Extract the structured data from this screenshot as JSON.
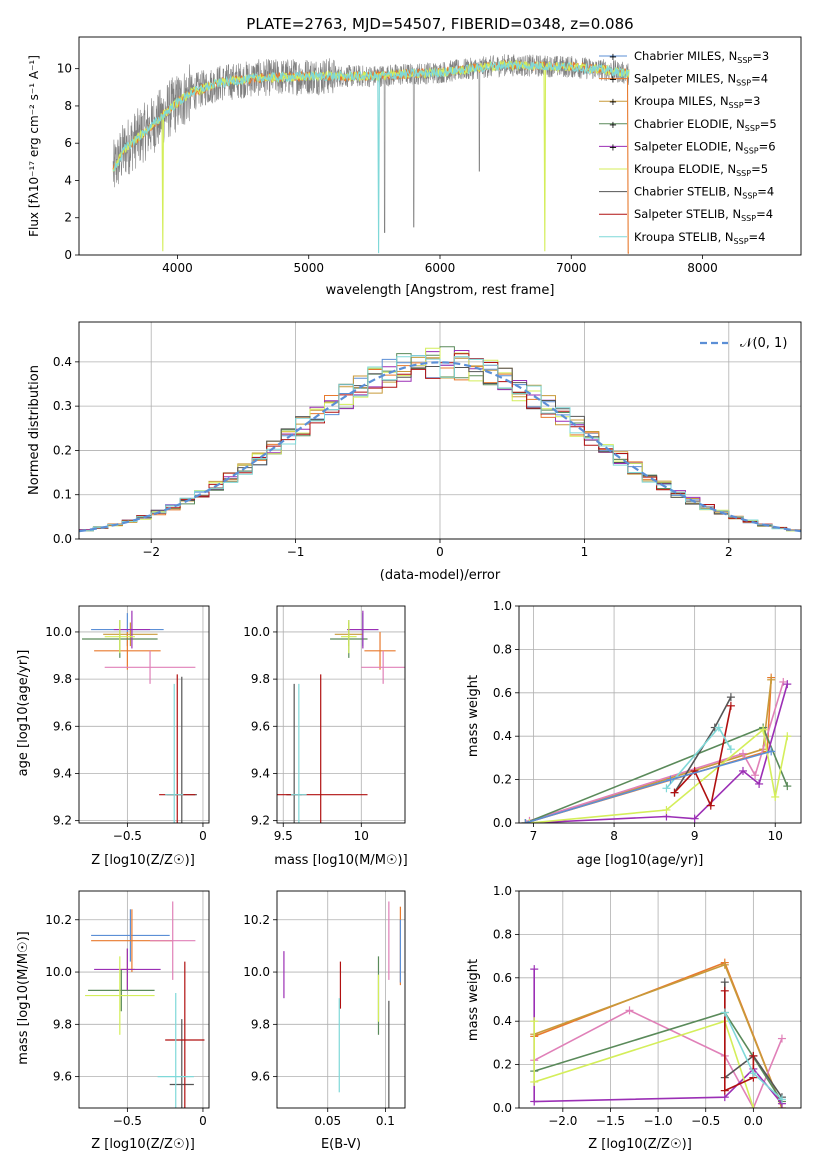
{
  "figure_title": "PLATE=2763, MJD=54507, FIBERID=0348, z=0.086",
  "colors": {
    "grid": "#b0b0b0",
    "observed": "#808080",
    "gaussian": "#5b8fd6",
    "models": [
      "#5b8fd6",
      "#e87a2e",
      "#c89a3a",
      "#5a8a5a",
      "#9b2fb5",
      "#d4ee5a",
      "#555555",
      "#b01010",
      "#7fd8d8"
    ]
  },
  "chart_data": [
    {
      "id": "spectrum",
      "type": "line",
      "title": "PLATE=2763, MJD=54507, FIBERID=0348, z=0.086",
      "xlabel": "wavelength [Angstrom, rest frame]",
      "ylabel": "Flux [fλ10⁻¹⁷ erg cm⁻² s⁻¹ A⁻¹]",
      "xlim": [
        3250,
        8750
      ],
      "ylim": [
        0,
        11.7
      ],
      "xticks": [
        4000,
        5000,
        6000,
        7000,
        8000
      ],
      "yticks": [
        0,
        2,
        4,
        6,
        8,
        10
      ],
      "continuum": {
        "x": [
          3500,
          3600,
          3800,
          3950,
          4100,
          4300,
          4600,
          5000,
          5500,
          6000,
          6500,
          7000,
          7300,
          7450
        ],
        "y": [
          4.4,
          5.7,
          6.9,
          7.9,
          8.7,
          9.2,
          9.5,
          9.6,
          9.6,
          9.8,
          10.2,
          10.1,
          9.9,
          9.7
        ]
      },
      "legend_location": "upper right",
      "legend": [
        "Chabrier MILES, N_SSP=3",
        "Salpeter MILES, N_SSP=4",
        "Kroupa MILES, N_SSP=3",
        "Chabrier ELODIE, N_SSP=5",
        "Salpeter ELODIE, N_SSP=6",
        "Kroupa ELODIE, N_SSP=5",
        "Chabrier STELIB, N_SSP=4",
        "Salpeter STELIB, N_SSP=4",
        "Kroupa STELIB, N_SSP=4"
      ]
    },
    {
      "id": "residuals",
      "type": "histogram",
      "xlabel": "(data-model)/error",
      "ylabel": "Normed distribution",
      "xlim": [
        -2.5,
        2.5
      ],
      "ylim": [
        0,
        0.49
      ],
      "xticks": [
        -2,
        -1,
        0,
        1,
        2
      ],
      "yticks": [
        0.0,
        0.1,
        0.2,
        0.3,
        0.4
      ],
      "gaussian_label": "𝒩(0, 1)",
      "bin_width": 0.1,
      "legend_location": "upper right"
    },
    {
      "id": "age-vs-Z",
      "type": "scatter",
      "xlabel": "Z [log10(Z/Z☉)]",
      "ylabel": "age  [log10(age/yr)]",
      "xlim": [
        -0.82,
        0.04
      ],
      "ylim": [
        9.19,
        10.11
      ],
      "xticks": [
        -0.5,
        0.0
      ],
      "yticks": [
        9.2,
        9.4,
        9.6,
        9.8,
        10.0
      ],
      "points": [
        {
          "x": -0.5,
          "y": 10.01,
          "xerr": 0.24,
          "yerr": 0.07,
          "c": 0
        },
        {
          "x": -0.5,
          "y": 9.92,
          "xerr": 0.22,
          "yerr": 0.08,
          "c": 1
        },
        {
          "x": -0.48,
          "y": 9.99,
          "xerr": 0.18,
          "yerr": 0.05,
          "c": 2
        },
        {
          "x": -0.55,
          "y": 9.97,
          "xerr": 0.25,
          "yerr": 0.08,
          "c": 3
        },
        {
          "x": -0.47,
          "y": 10.01,
          "xerr": 0.12,
          "yerr": 0.08,
          "c": 4
        },
        {
          "x": -0.55,
          "y": 9.98,
          "xerr": 0.1,
          "yerr": 0.07,
          "c": 5
        },
        {
          "x": -0.14,
          "y": 9.31,
          "xerr": 0.1,
          "yerr": 0.5,
          "c": 6
        },
        {
          "x": -0.17,
          "y": 9.31,
          "xerr": 0.12,
          "yerr": 0.51,
          "c": 7
        },
        {
          "x": -0.19,
          "y": 9.31,
          "xerr": 0.06,
          "yerr": 0.47,
          "c": 8
        },
        {
          "x": -0.35,
          "y": 9.85,
          "xerr": 0.3,
          "yerr": 0.07,
          "c": "pink"
        }
      ]
    },
    {
      "id": "age-vs-mass",
      "type": "scatter",
      "xlabel": "mass [log10(M/M☉)]",
      "ylabel": "",
      "xlim": [
        9.46,
        10.28
      ],
      "ylim": [
        9.19,
        10.11
      ],
      "xticks": [
        9.5,
        10.0
      ],
      "yticks": [
        9.2,
        9.4,
        9.6,
        9.8,
        10.0
      ],
      "points": [
        {
          "x": 10.01,
          "y": 10.01,
          "xerr": 0.1,
          "yerr": 0.07,
          "c": 0
        },
        {
          "x": 10.12,
          "y": 9.92,
          "xerr": 0.1,
          "yerr": 0.08,
          "c": 1
        },
        {
          "x": 9.92,
          "y": 9.99,
          "xerr": 0.09,
          "yerr": 0.05,
          "c": 2
        },
        {
          "x": 9.92,
          "y": 9.97,
          "xerr": 0.12,
          "yerr": 0.08,
          "c": 3
        },
        {
          "x": 10.01,
          "y": 10.01,
          "xerr": 0.1,
          "yerr": 0.08,
          "c": 4
        },
        {
          "x": 9.92,
          "y": 9.98,
          "xerr": 0.05,
          "yerr": 0.07,
          "c": 5
        },
        {
          "x": 9.57,
          "y": 9.31,
          "xerr": 0.05,
          "yerr": 0.47,
          "c": 6
        },
        {
          "x": 9.74,
          "y": 9.31,
          "xerr": 0.3,
          "yerr": 0.51,
          "c": 7
        },
        {
          "x": 9.6,
          "y": 9.31,
          "xerr": 0.05,
          "yerr": 0.47,
          "c": 8
        },
        {
          "x": 10.14,
          "y": 9.85,
          "xerr": 0.14,
          "yerr": 0.07,
          "c": "pink"
        }
      ]
    },
    {
      "id": "mass-weight-vs-age",
      "type": "line",
      "xlabel": "age  [log10(age/yr)]",
      "ylabel": "mass weight",
      "xlim": [
        6.82,
        10.32
      ],
      "ylim": [
        0,
        1.0
      ],
      "xticks": [
        7,
        8,
        9,
        10
      ],
      "yticks": [
        0.0,
        0.2,
        0.4,
        0.6,
        0.8,
        1.0
      ],
      "series": [
        {
          "c": 1,
          "x": [
            6.9,
            9.9,
            9.95
          ],
          "y": [
            0.0,
            0.33,
            0.67
          ]
        },
        {
          "c": 2,
          "x": [
            6.9,
            9.85,
            9.95
          ],
          "y": [
            0.0,
            0.34,
            0.66
          ]
        },
        {
          "c": "pink",
          "x": [
            6.95,
            9.6,
            9.75,
            10.1
          ],
          "y": [
            0.01,
            0.32,
            0.22,
            0.65
          ]
        },
        {
          "c": 3,
          "x": [
            6.9,
            9.85,
            10.15
          ],
          "y": [
            0.0,
            0.44,
            0.17
          ]
        },
        {
          "c": 4,
          "x": [
            6.95,
            8.65,
            9.0,
            9.6,
            9.8,
            10.15
          ],
          "y": [
            0.0,
            0.03,
            0.02,
            0.24,
            0.18,
            0.64
          ]
        },
        {
          "c": 5,
          "x": [
            6.95,
            8.65,
            9.85,
            10.0,
            10.15
          ],
          "y": [
            0.0,
            0.06,
            0.43,
            0.12,
            0.4
          ]
        },
        {
          "c": 6,
          "x": [
            8.75,
            9.25,
            9.45
          ],
          "y": [
            0.14,
            0.44,
            0.58
          ]
        },
        {
          "c": 7,
          "x": [
            8.75,
            9.0,
            9.2,
            9.45
          ],
          "y": [
            0.14,
            0.24,
            0.08,
            0.54
          ]
        },
        {
          "c": 8,
          "x": [
            8.65,
            9.3,
            9.45
          ],
          "y": [
            0.16,
            0.44,
            0.34
          ]
        },
        {
          "c": 0,
          "x": [
            6.9,
            8.7,
            9.95
          ],
          "y": [
            0.0,
            0.2,
            0.33
          ]
        }
      ]
    },
    {
      "id": "mass-vs-Z",
      "type": "scatter",
      "xlabel": "Z [log10(Z/Z☉)]",
      "ylabel": "mass [log10(M/M☉)]",
      "xlim": [
        -0.82,
        0.04
      ],
      "ylim": [
        9.48,
        10.31
      ],
      "xticks": [
        -0.5,
        0.0
      ],
      "yticks": [
        9.6,
        9.8,
        10.0,
        10.2
      ],
      "points": [
        {
          "x": -0.48,
          "y": 10.14,
          "xerr": 0.26,
          "yerr": 0.1,
          "c": 0
        },
        {
          "x": -0.47,
          "y": 10.12,
          "xerr": 0.27,
          "yerr": 0.12,
          "c": 1
        },
        {
          "x": -0.5,
          "y": 10.01,
          "xerr": 0.05,
          "yerr": 0.08,
          "c": 2
        },
        {
          "x": -0.54,
          "y": 9.93,
          "xerr": 0.22,
          "yerr": 0.08,
          "c": 3
        },
        {
          "x": -0.5,
          "y": 10.01,
          "xerr": 0.22,
          "yerr": 0.08,
          "c": 4
        },
        {
          "x": -0.55,
          "y": 9.91,
          "xerr": 0.23,
          "yerr": 0.15,
          "c": 5
        },
        {
          "x": -0.14,
          "y": 9.57,
          "xerr": 0.08,
          "yerr": 0.25,
          "c": 6
        },
        {
          "x": -0.12,
          "y": 9.74,
          "xerr": 0.13,
          "yerr": 0.3,
          "c": 7
        },
        {
          "x": -0.18,
          "y": 9.6,
          "xerr": 0.12,
          "yerr": 0.32,
          "c": 8
        },
        {
          "x": -0.2,
          "y": 10.12,
          "xerr": 0.15,
          "yerr": 0.15,
          "c": "pink"
        }
      ]
    },
    {
      "id": "mass-vs-EBV",
      "type": "scatter",
      "xlabel": "E(B-V)",
      "ylabel": "",
      "xlim": [
        0.006,
        0.117
      ],
      "ylim": [
        9.48,
        10.31
      ],
      "xticks": [
        0.05,
        0.1
      ],
      "yticks": [
        9.6,
        9.8,
        10.0,
        10.2
      ],
      "points": [
        {
          "x": 0.113,
          "y": 10.1,
          "xerr": 0,
          "yerr": 0.15,
          "c": 1
        },
        {
          "x": 0.113,
          "y": 10.08,
          "xerr": 0,
          "yerr": 0.12,
          "c": 0
        },
        {
          "x": 0.012,
          "y": 9.99,
          "xerr": 0,
          "yerr": 0.09,
          "c": 4
        },
        {
          "x": 0.061,
          "y": 9.95,
          "xerr": 0,
          "yerr": 0.09,
          "c": 7
        },
        {
          "x": 0.06,
          "y": 9.72,
          "xerr": 0,
          "yerr": 0.18,
          "c": 8
        },
        {
          "x": 0.094,
          "y": 9.91,
          "xerr": 0,
          "yerr": 0.15,
          "c": 3
        },
        {
          "x": 0.094,
          "y": 9.9,
          "xerr": 0,
          "yerr": 0.09,
          "c": 5
        },
        {
          "x": 0.103,
          "y": 9.68,
          "xerr": 0,
          "yerr": 0.21,
          "c": 6
        },
        {
          "x": 0.103,
          "y": 10.12,
          "xerr": 0,
          "yerr": 0.15,
          "c": "pink"
        }
      ]
    },
    {
      "id": "mass-weight-vs-Z",
      "type": "line",
      "xlabel": "Z [log10(Z/Z☉)]",
      "ylabel": "mass weight",
      "xlim": [
        -2.46,
        0.5
      ],
      "ylim": [
        0,
        1.0
      ],
      "xticks": [
        -2.0,
        -1.5,
        -1.0,
        -0.5,
        0.0
      ],
      "yticks": [
        0.0,
        0.2,
        0.4,
        0.6,
        0.8,
        1.0
      ],
      "series": [
        {
          "c": 1,
          "x": [
            -2.3,
            -0.3,
            0.3
          ],
          "y": [
            0.33,
            0.67,
            0.0
          ]
        },
        {
          "c": 2,
          "x": [
            -2.3,
            -0.3,
            0.3
          ],
          "y": [
            0.34,
            0.66,
            0.0
          ]
        },
        {
          "c": "pink",
          "x": [
            -2.3,
            -1.3,
            -0.3,
            0.0,
            0.3
          ],
          "y": [
            0.22,
            0.45,
            0.24,
            0.0,
            0.32
          ]
        },
        {
          "c": 3,
          "x": [
            -2.3,
            -0.3,
            0.3
          ],
          "y": [
            0.17,
            0.44,
            0.03
          ]
        },
        {
          "c": 4,
          "x": [
            -2.3,
            -2.3,
            -0.3,
            0.0,
            0.3
          ],
          "y": [
            0.64,
            0.03,
            0.05,
            0.18,
            0.02
          ]
        },
        {
          "c": 5,
          "x": [
            -2.3,
            -2.3,
            -0.3,
            0.0
          ],
          "y": [
            0.4,
            0.12,
            0.4,
            0.0
          ]
        },
        {
          "c": 6,
          "x": [
            -0.3,
            -0.3,
            0.0,
            0.3
          ],
          "y": [
            0.58,
            0.14,
            0.24,
            0.05
          ]
        },
        {
          "c": 7,
          "x": [
            -0.3,
            -0.3,
            0.0,
            0.0
          ],
          "y": [
            0.54,
            0.08,
            0.14,
            0.24
          ]
        },
        {
          "c": 8,
          "x": [
            -0.3,
            0.0,
            0.3
          ],
          "y": [
            0.44,
            0.16,
            0.04
          ]
        }
      ]
    }
  ]
}
